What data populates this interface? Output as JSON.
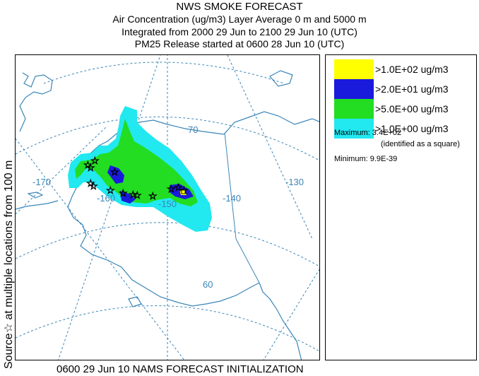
{
  "header": {
    "title": "NWS SMOKE FORECAST",
    "line1": "Air Concentration (ug/m3) Layer Average    0 m and  5000 m",
    "line2": "Integrated from 2000 29 Jun to 2100 29 Jun 10 (UTC)",
    "line3": "PM25 Release started at 0600 28 Jun 10 (UTC)"
  },
  "side_label": "Source☆  at multiple locations   from   100 m",
  "legend": {
    "items": [
      {
        "label": ">1.0E+02 ug/m3",
        "color": "#ffff00"
      },
      {
        "label": ">2.0E+01 ug/m3",
        "color": "#1a1adc"
      },
      {
        "label": ">5.0E+00 ug/m3",
        "color": "#22dd22"
      },
      {
        "label": ">1.0E+00 ug/m3",
        "color": "#22e8f0"
      }
    ],
    "maximum": "Maximum: 3.4E+02",
    "maximum_note": "(identified as a square)",
    "minimum": "Minimum: 9.9E-39"
  },
  "map": {
    "grid_labels": [
      "-170",
      "-160",
      "-150",
      "-140",
      "-130",
      "70",
      "60"
    ],
    "colors": {
      "coast": "#3a86b8",
      "grid": "#3a86b8",
      "border": "#000000"
    }
  },
  "footer": "0600 29 Jun 10 NAMS FORECAST INITIALIZATION"
}
